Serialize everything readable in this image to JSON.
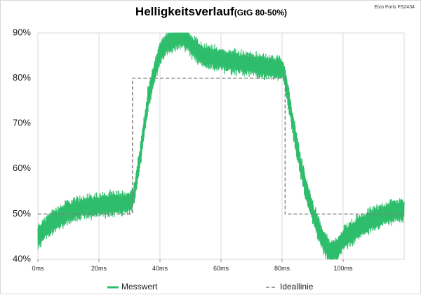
{
  "header": {
    "title": "Helligkeitsverlauf",
    "subtitle": "(GtG 80-50%)",
    "corner_label": "Eizo Foris FS2434"
  },
  "chart_data": {
    "type": "line",
    "title": "Helligkeitsverlauf (GtG 80-50%)",
    "xlabel": "",
    "ylabel": "",
    "x_unit": "ms",
    "xlim": [
      0,
      120
    ],
    "ylim": [
      40,
      90
    ],
    "x_ticks": [
      "0ms",
      "20ms",
      "40ms",
      "60ms",
      "80ms",
      "100ms"
    ],
    "y_ticks": [
      "40%",
      "50%",
      "60%",
      "70%",
      "80%",
      "90%"
    ],
    "grid": "vertical",
    "legend_position": "bottom",
    "series": [
      {
        "name": "Messwert",
        "color": "#2ebd6b",
        "style": "noisy",
        "x": [
          0,
          2,
          5,
          10,
          15,
          20,
          25,
          30,
          31,
          32,
          34,
          36,
          38,
          40,
          42,
          45,
          47,
          49,
          51,
          54,
          58,
          62,
          66,
          70,
          75,
          80,
          81,
          82,
          84,
          86,
          88,
          90,
          92,
          94,
          96,
          98,
          100,
          105,
          110,
          115,
          120
        ],
        "y": [
          45,
          46.5,
          48.5,
          50.5,
          51.5,
          52,
          52.3,
          52.5,
          53,
          56,
          65,
          75,
          81,
          85.5,
          87.5,
          88.8,
          89.2,
          88.5,
          86.5,
          85,
          84.5,
          83.8,
          83.5,
          83,
          82.5,
          82,
          80,
          76,
          68,
          61,
          55,
          50.5,
          46.5,
          43.5,
          41.5,
          42,
          44.5,
          47,
          49,
          50.3,
          51
        ]
      },
      {
        "name": "Ideallinie",
        "color": "#7f7f7f",
        "style": "dashed",
        "x": [
          0,
          31,
          31,
          81,
          81,
          120
        ],
        "y": [
          50,
          50,
          80,
          80,
          50,
          50
        ]
      }
    ]
  }
}
